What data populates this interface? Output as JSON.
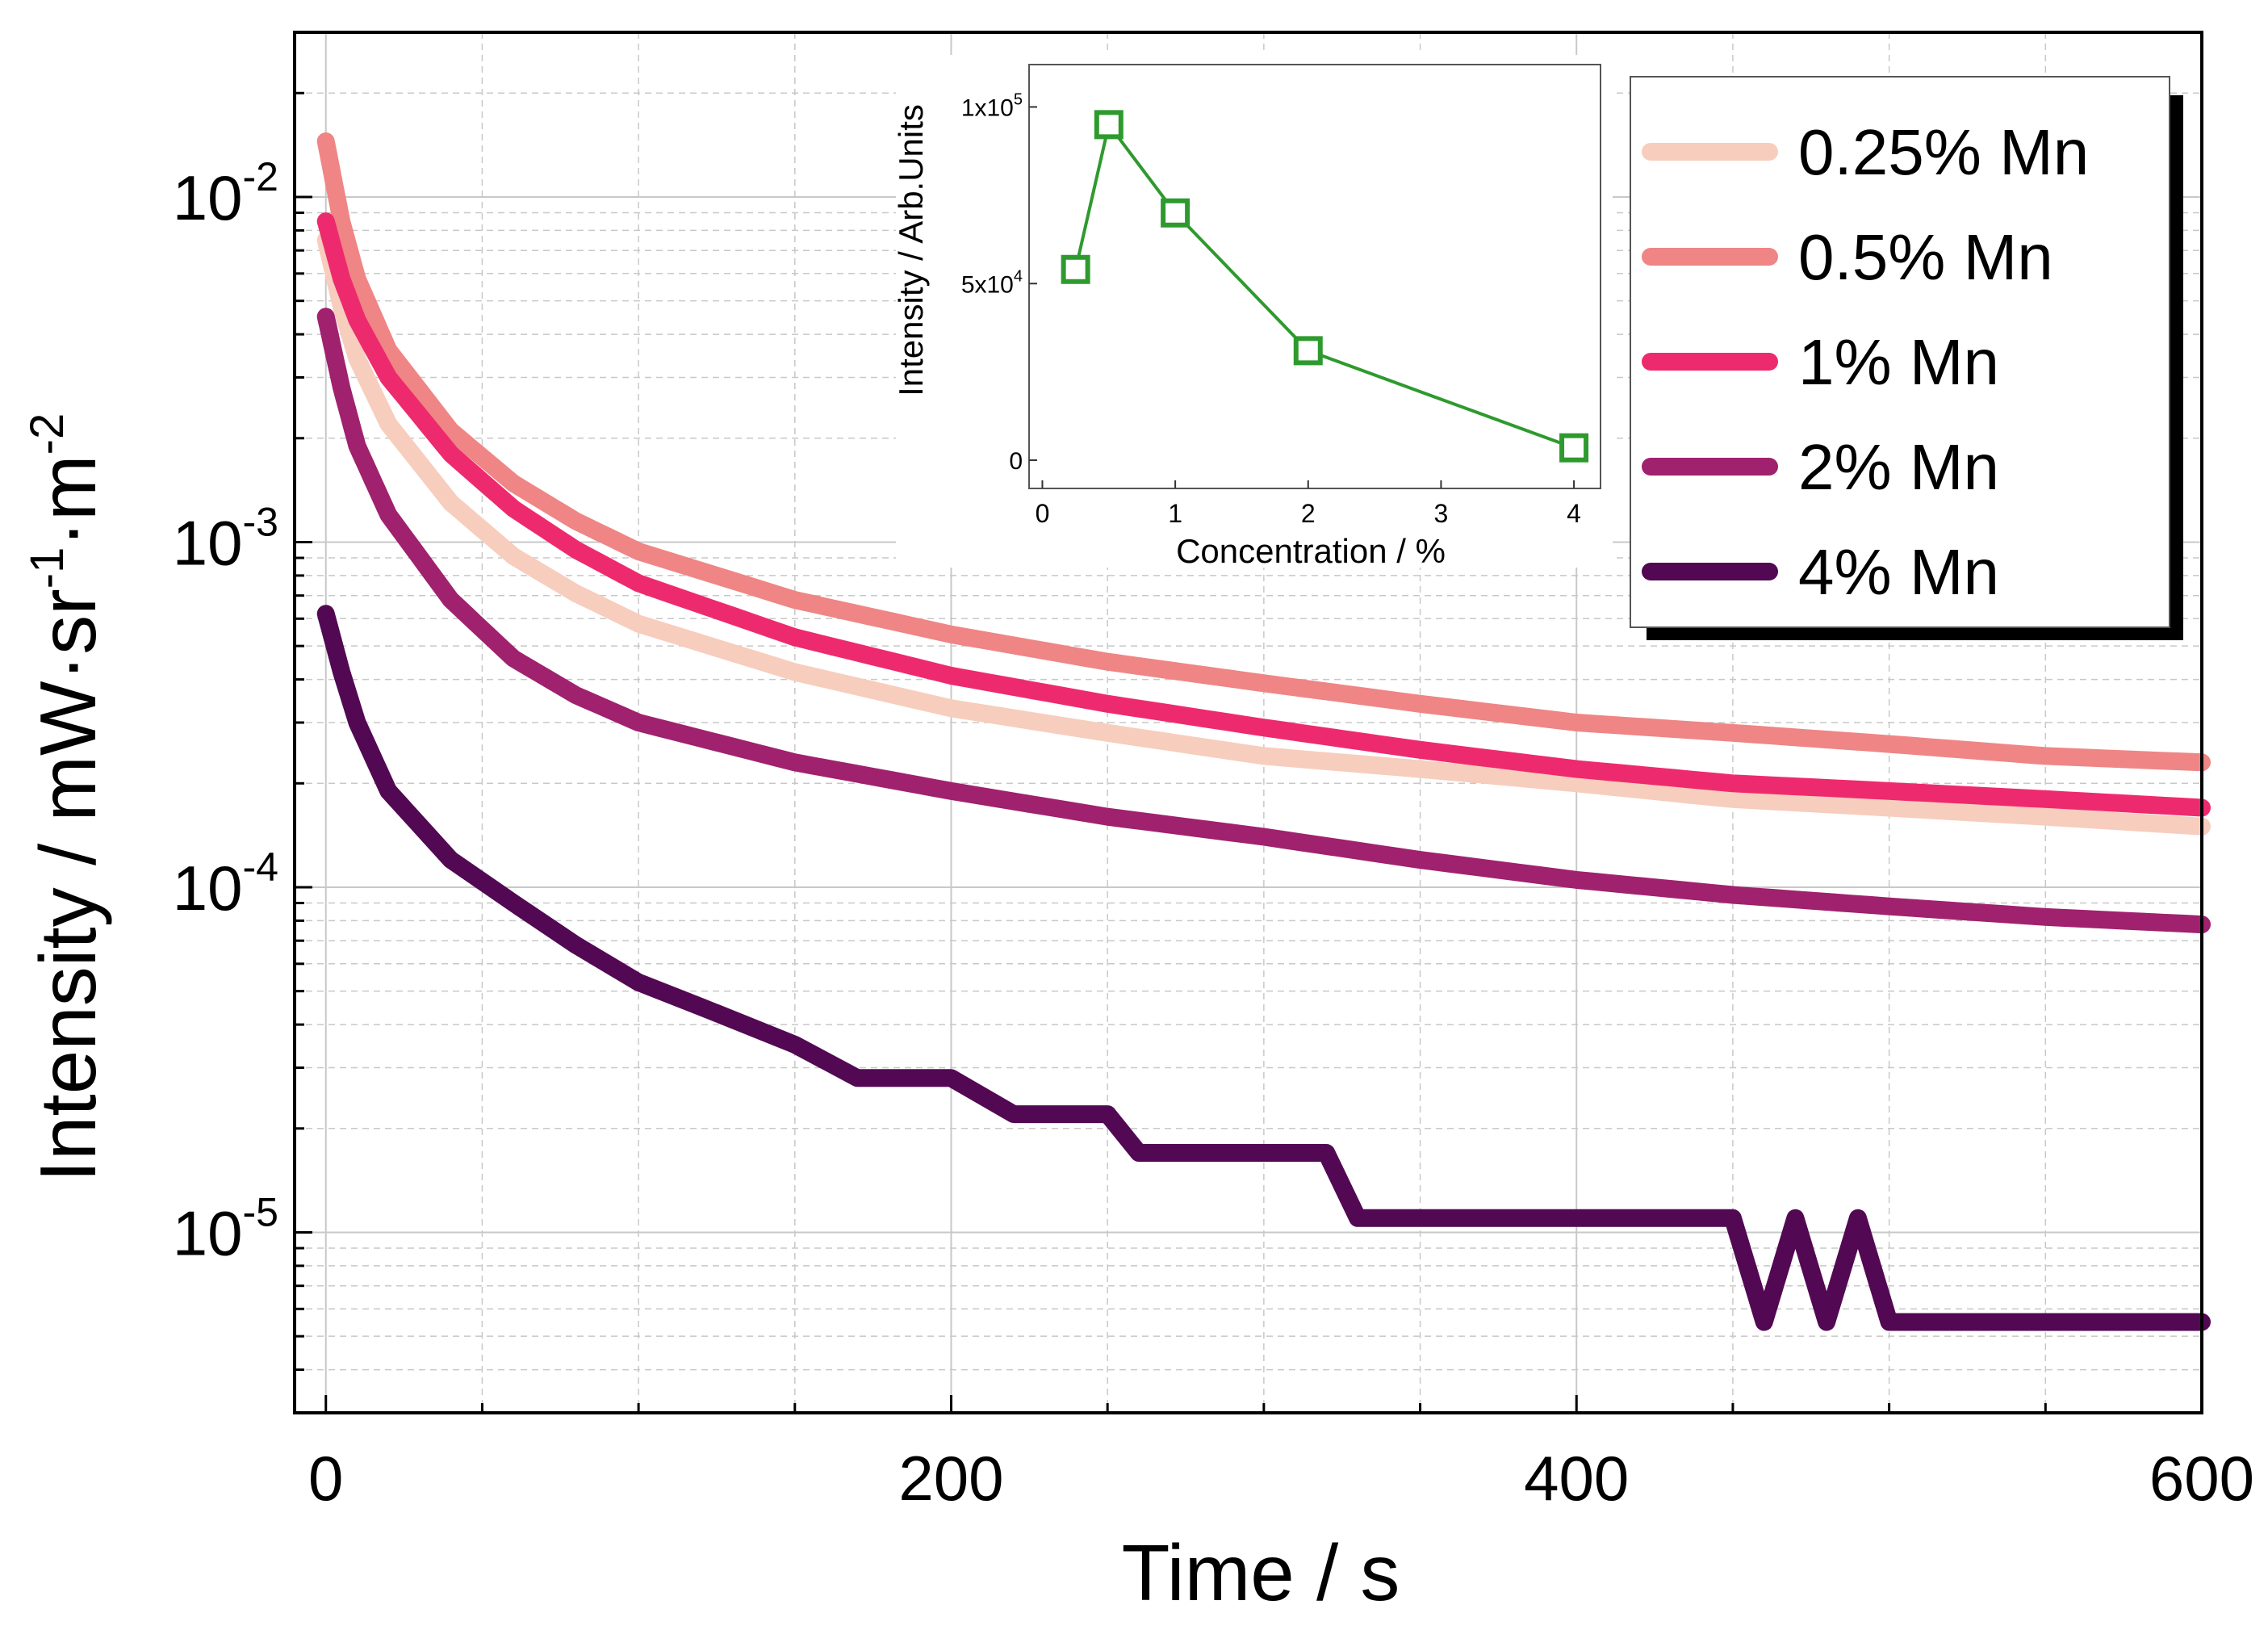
{
  "chart_data": [
    {
      "id": "main",
      "type": "line",
      "title": "",
      "xlabel": "Time / s",
      "ylabel_parts": [
        "Intensity / mW·sr",
        "-1",
        "·m",
        "-2"
      ],
      "xscale": "linear",
      "yscale": "log",
      "xlim": [
        -10,
        600
      ],
      "ylim": [
        3e-06,
        0.03
      ],
      "grid": true,
      "x_ticks": [
        {
          "value": 0,
          "label": "0"
        },
        {
          "value": 200,
          "label": "200"
        },
        {
          "value": 400,
          "label": "400"
        },
        {
          "value": 600,
          "label": "600"
        }
      ],
      "y_ticks": [
        {
          "value": 0.01,
          "base": "10",
          "exp": "-2"
        },
        {
          "value": 0.001,
          "base": "10",
          "exp": "-3"
        },
        {
          "value": 0.0001,
          "base": "10",
          "exp": "-4"
        },
        {
          "value": 1e-05,
          "base": "10",
          "exp": "-5"
        }
      ],
      "legend_position": "top-right",
      "series": [
        {
          "name": "0.25% Mn",
          "color": "#f7cdbd",
          "x": [
            0,
            5,
            10,
            20,
            40,
            60,
            80,
            100,
            150,
            200,
            250,
            300,
            350,
            400,
            450,
            500,
            550,
            600
          ],
          "values": [
            0.0075,
            0.0048,
            0.0034,
            0.0022,
            0.0013,
            0.00091,
            0.00071,
            0.00058,
            0.00042,
            0.00033,
            0.00028,
            0.00024,
            0.00022,
            0.0002,
            0.00018,
            0.00017,
            0.00016,
            0.00015
          ]
        },
        {
          "name": "0.5% Mn",
          "color": "#ef8585",
          "x": [
            0,
            5,
            10,
            20,
            40,
            60,
            80,
            100,
            150,
            200,
            250,
            300,
            350,
            400,
            450,
            500,
            550,
            600
          ],
          "values": [
            0.0145,
            0.0085,
            0.0058,
            0.0036,
            0.0021,
            0.00148,
            0.00115,
            0.00094,
            0.00068,
            0.00054,
            0.00045,
            0.00039,
            0.00034,
            0.0003,
            0.00028,
            0.00026,
            0.00024,
            0.00023
          ]
        },
        {
          "name": "1% Mn",
          "color": "#ee2a6e",
          "x": [
            0,
            5,
            10,
            20,
            40,
            60,
            80,
            100,
            150,
            200,
            250,
            300,
            350,
            400,
            450,
            500,
            550,
            600
          ],
          "values": [
            0.0085,
            0.0058,
            0.0044,
            0.003,
            0.0018,
            0.00125,
            0.00095,
            0.00076,
            0.00053,
            0.00041,
            0.00034,
            0.00029,
            0.00025,
            0.00022,
            0.0002,
            0.00019,
            0.00018,
            0.00017
          ]
        },
        {
          "name": "2% Mn",
          "color": "#a0216e",
          "x": [
            0,
            5,
            10,
            20,
            40,
            60,
            80,
            100,
            150,
            200,
            250,
            300,
            350,
            400,
            450,
            500,
            550,
            600
          ],
          "values": [
            0.0045,
            0.0028,
            0.0019,
            0.0012,
            0.00068,
            0.00046,
            0.00036,
            0.0003,
            0.00023,
            0.00019,
            0.00016,
            0.00014,
            0.00012,
            0.000105,
            9.5e-05,
            8.8e-05,
            8.2e-05,
            7.8e-05
          ]
        },
        {
          "name": "4% Mn",
          "color": "#520852",
          "x": [
            0,
            5,
            10,
            20,
            40,
            60,
            80,
            100,
            120,
            150,
            170,
            200,
            220,
            250,
            260,
            320,
            330,
            450,
            460,
            470,
            480,
            490,
            500,
            510,
            600
          ],
          "values": [
            0.00062,
            0.00042,
            0.0003,
            0.00019,
            0.00012,
            9e-05,
            6.8e-05,
            5.3e-05,
            4.5e-05,
            3.5e-05,
            2.8e-05,
            2.8e-05,
            2.2e-05,
            2.2e-05,
            1.7e-05,
            1.7e-05,
            1.1e-05,
            1.1e-05,
            5.5e-06,
            1.1e-05,
            5.5e-06,
            1.1e-05,
            5.5e-06,
            5.5e-06,
            5.5e-06
          ]
        }
      ]
    },
    {
      "id": "inset",
      "type": "line",
      "title": "",
      "xlabel": "Concentration / %",
      "ylabel": "Intensity / Arb.Units",
      "xlim": [
        -0.1,
        4.2
      ],
      "ylim": [
        -8000,
        112000
      ],
      "x": [
        0.25,
        0.5,
        1,
        2,
        4
      ],
      "values": [
        54000,
        95000,
        70000,
        31000,
        3500
      ],
      "color": "#2e9a2e",
      "marker": "open-square",
      "x_ticks": [
        {
          "value": 0,
          "label": "0"
        },
        {
          "value": 1,
          "label": "1"
        },
        {
          "value": 2,
          "label": "2"
        },
        {
          "value": 3,
          "label": "3"
        },
        {
          "value": 4,
          "label": "4"
        }
      ],
      "y_ticks": [
        {
          "value": 0,
          "mant": "0",
          "base": "",
          "exp": ""
        },
        {
          "value": 50000,
          "mant": "5x10",
          "base": "",
          "exp": "4"
        },
        {
          "value": 100000,
          "mant": "1x10",
          "base": "",
          "exp": "5"
        }
      ]
    }
  ]
}
